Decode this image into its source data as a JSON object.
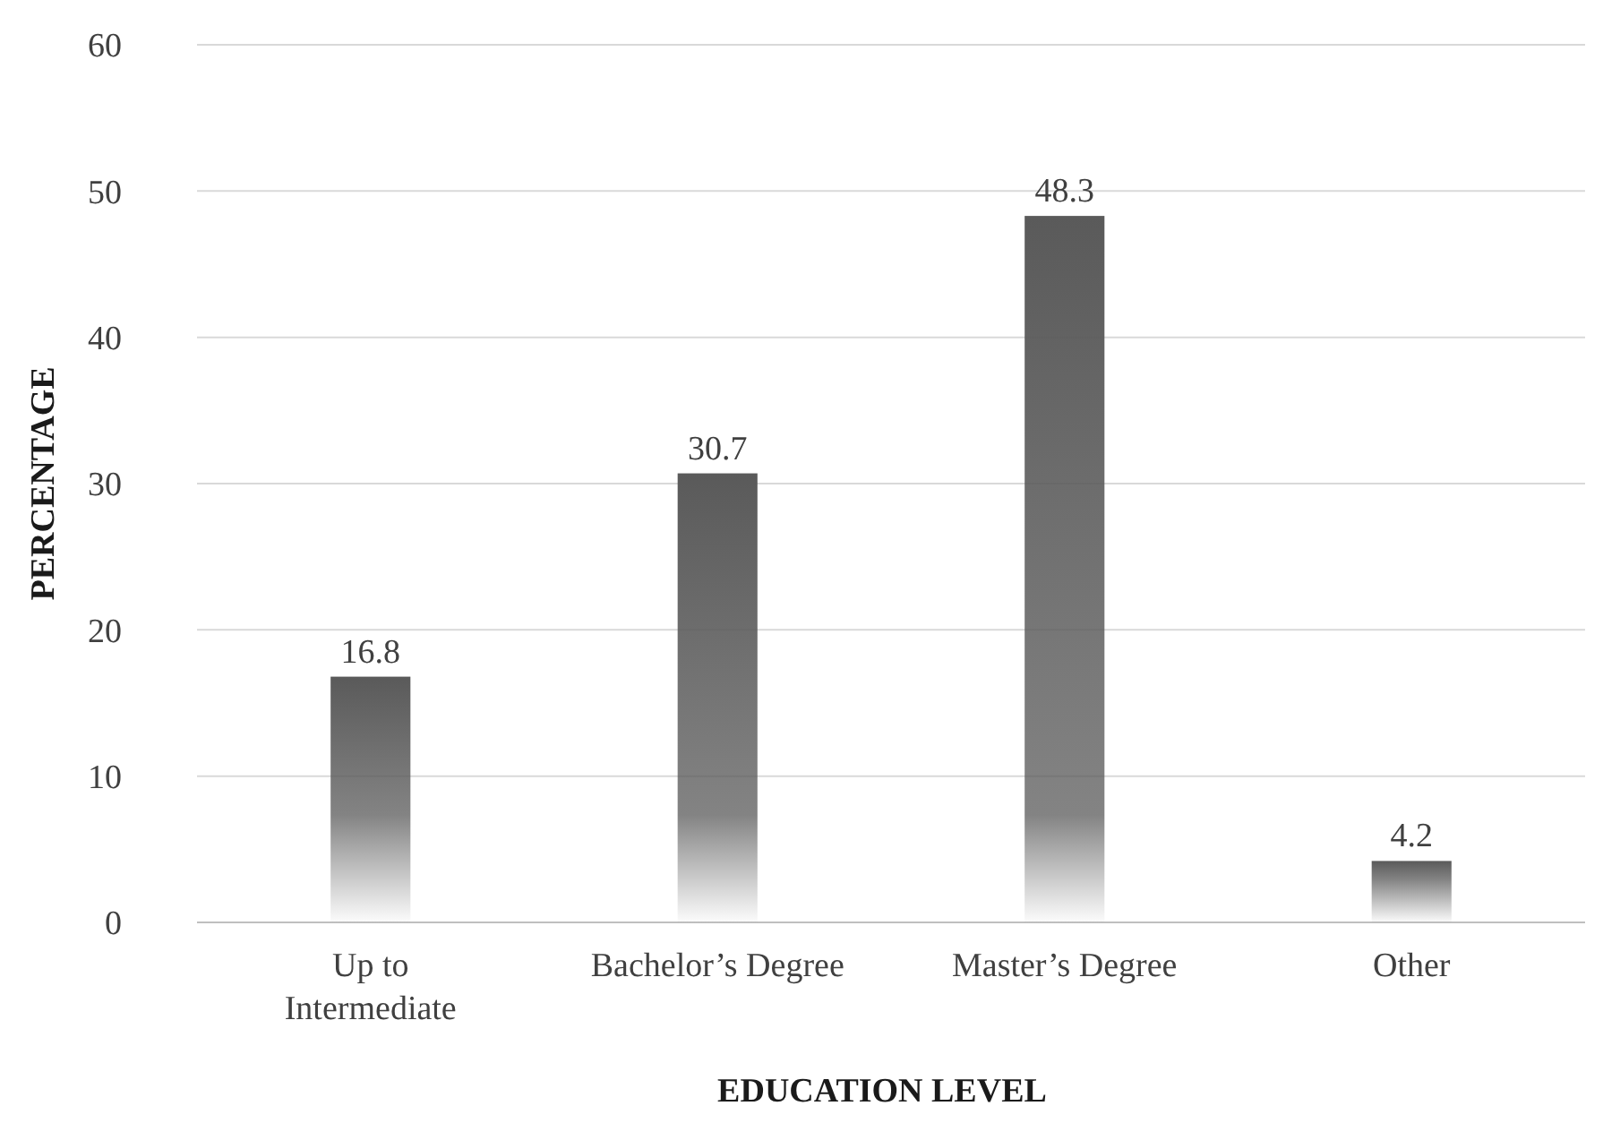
{
  "chart_data": {
    "type": "bar",
    "xlabel": "EDUCATION LEVEL",
    "ylabel": "PERCENTAGE",
    "categories": [
      "Up to\nIntermediate",
      "Bachelor’s Degree",
      "Master’s Degree",
      "Other"
    ],
    "values": [
      16.8,
      30.7,
      48.3,
      4.2
    ],
    "color": "#5a5a5a",
    "ylim": [
      0,
      60
    ],
    "yticks": [
      0,
      10,
      20,
      30,
      40,
      50,
      60
    ],
    "grid": "y",
    "data_labels": true
  }
}
